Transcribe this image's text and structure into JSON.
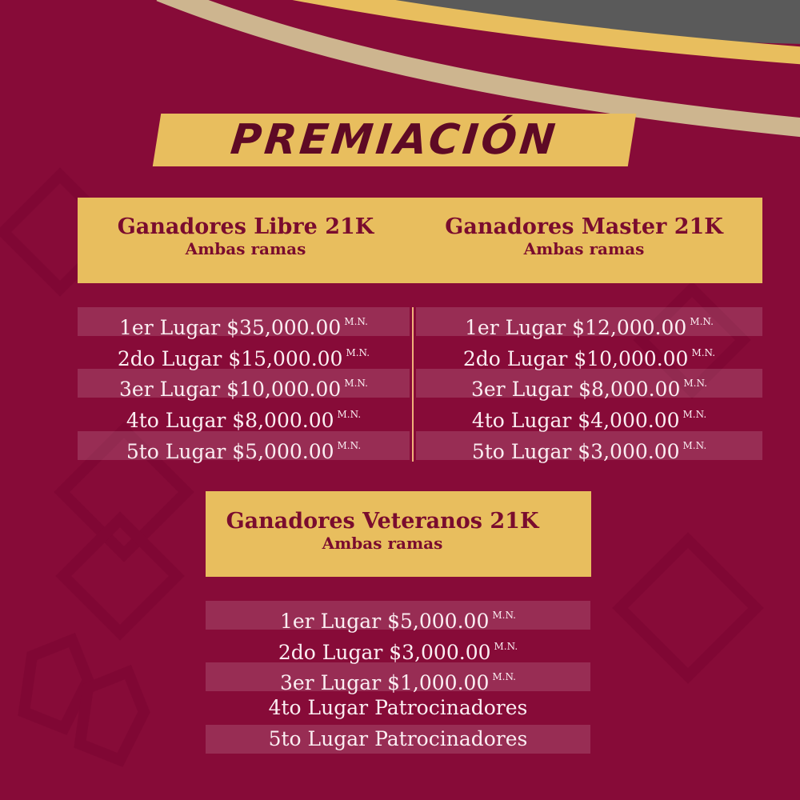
{
  "title": "PREMIACIÓN",
  "colors": {
    "background": "#870b38",
    "gold": "#e8be5e",
    "heading_text": "#7a0c2e",
    "arc_beige": "#cdb58f",
    "arc_gray": "#5a5a5a"
  },
  "sections": [
    {
      "title": "Ganadores Libre 21K",
      "subtitle": "Ambas ramas",
      "rows": [
        {
          "place": "1er Lugar",
          "prize": "$35,000.00",
          "currency": "M.N."
        },
        {
          "place": "2do Lugar",
          "prize": "$15,000.00",
          "currency": "M.N."
        },
        {
          "place": "3er Lugar",
          "prize": "$10,000.00",
          "currency": "M.N."
        },
        {
          "place": "4to Lugar",
          "prize": "$8,000.00",
          "currency": "M.N."
        },
        {
          "place": "5to Lugar",
          "prize": "$5,000.00",
          "currency": "M.N."
        }
      ]
    },
    {
      "title": "Ganadores Master 21K",
      "subtitle": "Ambas ramas",
      "rows": [
        {
          "place": "1er Lugar",
          "prize": "$12,000.00",
          "currency": "M.N."
        },
        {
          "place": "2do Lugar",
          "prize": "$10,000.00",
          "currency": "M.N."
        },
        {
          "place": "3er Lugar",
          "prize": "$8,000.00",
          "currency": "M.N."
        },
        {
          "place": "4to Lugar",
          "prize": "$4,000.00",
          "currency": "M.N."
        },
        {
          "place": "5to Lugar",
          "prize": "$3,000.00",
          "currency": "M.N."
        }
      ]
    },
    {
      "title": "Ganadores Veteranos 21K",
      "subtitle": "Ambas ramas",
      "rows": [
        {
          "place": "1er Lugar",
          "prize": "$5,000.00",
          "currency": "M.N."
        },
        {
          "place": "2do Lugar",
          "prize": "$3,000.00",
          "currency": "M.N."
        },
        {
          "place": "3er Lugar",
          "prize": "$1,000.00",
          "currency": "M.N."
        },
        {
          "place": "4to Lugar",
          "prize": "Patrocinadores",
          "currency": ""
        },
        {
          "place": "5to Lugar",
          "prize": "Patrocinadores",
          "currency": ""
        }
      ]
    }
  ]
}
